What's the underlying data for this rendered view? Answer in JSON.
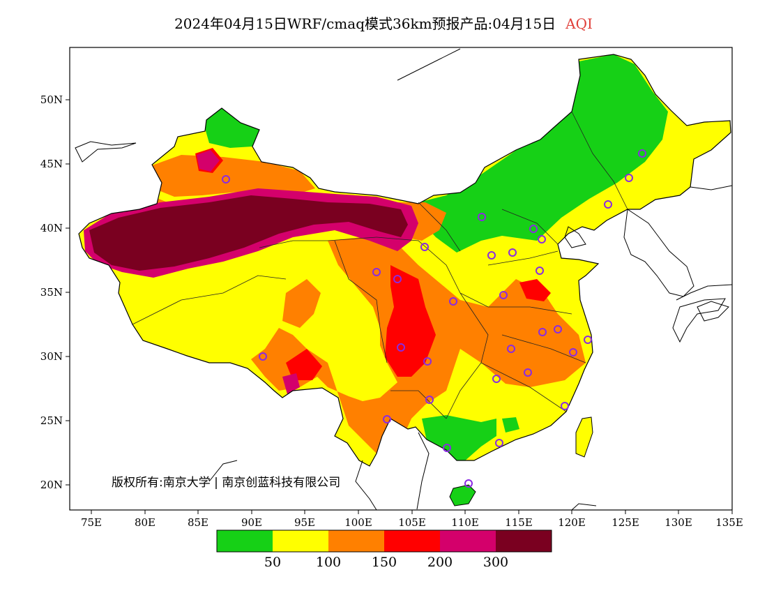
{
  "title": {
    "main": "2024年04月15日WRF/cmaq模式36km预报产品:04月15日",
    "variable": "AQI"
  },
  "copyright": "版权所有:南京大学 | 南京创蓝科技有限公司",
  "axes": {
    "lat_labels": [
      "50N",
      "45N",
      "40N",
      "35N",
      "30N",
      "25N",
      "20N"
    ],
    "lon_labels": [
      "75E",
      "80E",
      "85E",
      "90E",
      "95E",
      "100E",
      "105E",
      "110E",
      "115E",
      "120E",
      "125E",
      "130E",
      "135E"
    ],
    "lon_range": [
      73,
      135
    ],
    "lat_range": [
      18,
      54
    ]
  },
  "legend": {
    "colors": [
      "#16d016",
      "#ffff00",
      "#ff8000",
      "#ff0000",
      "#d4006b",
      "#7a0020"
    ],
    "labels": [
      "50",
      "100",
      "150",
      "200",
      "300"
    ]
  },
  "colors": {
    "good": "#16d016",
    "moderate": "#ffff00",
    "usg": "#ff8000",
    "unhealthy": "#ff0000",
    "very_unhealthy": "#d4006b",
    "hazardous": "#7a0020",
    "station_marker": "#8a2be2"
  }
}
